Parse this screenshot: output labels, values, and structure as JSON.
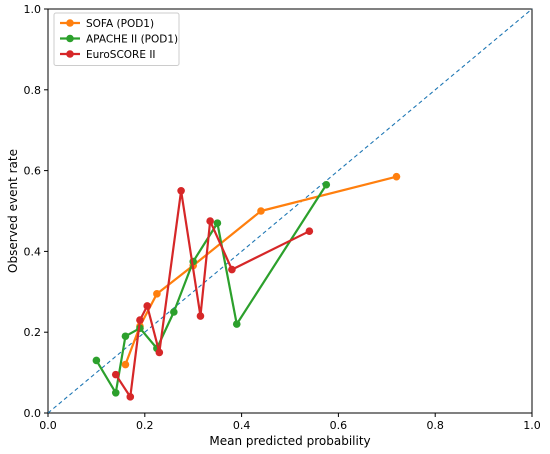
{
  "chart_data": {
    "type": "line",
    "title": "",
    "xlabel": "Mean predicted probability",
    "ylabel": "Observed event rate",
    "xlim": [
      0.0,
      1.0
    ],
    "ylim": [
      0.0,
      1.0
    ],
    "xticks": [
      "0.0",
      "0.2",
      "0.4",
      "0.6",
      "0.8",
      "1.0"
    ],
    "yticks": [
      "0.0",
      "0.2",
      "0.4",
      "0.6",
      "0.8",
      "1.0"
    ],
    "grid": false,
    "legend_position": "top-left",
    "reference_line": {
      "style": "dashed",
      "color": "#1f77b4",
      "from": [
        0,
        0
      ],
      "to": [
        1,
        1
      ]
    },
    "series": [
      {
        "name": "SOFA (POD1)",
        "color": "#ff7f0e",
        "points": [
          [
            0.16,
            0.12
          ],
          [
            0.19,
            0.215
          ],
          [
            0.225,
            0.295
          ],
          [
            0.3,
            0.365
          ],
          [
            0.44,
            0.5
          ],
          [
            0.72,
            0.585
          ]
        ]
      },
      {
        "name": "APACHE II (POD1)",
        "color": "#2ca02c",
        "points": [
          [
            0.1,
            0.13
          ],
          [
            0.14,
            0.05
          ],
          [
            0.16,
            0.19
          ],
          [
            0.19,
            0.21
          ],
          [
            0.225,
            0.16
          ],
          [
            0.26,
            0.25
          ],
          [
            0.3,
            0.375
          ],
          [
            0.35,
            0.47
          ],
          [
            0.39,
            0.22
          ],
          [
            0.575,
            0.565
          ]
        ]
      },
      {
        "name": "EuroSCORE II",
        "color": "#d62728",
        "points": [
          [
            0.14,
            0.095
          ],
          [
            0.17,
            0.04
          ],
          [
            0.19,
            0.23
          ],
          [
            0.205,
            0.265
          ],
          [
            0.23,
            0.15
          ],
          [
            0.275,
            0.55
          ],
          [
            0.315,
            0.24
          ],
          [
            0.335,
            0.475
          ],
          [
            0.38,
            0.355
          ],
          [
            0.54,
            0.45
          ]
        ]
      }
    ]
  }
}
